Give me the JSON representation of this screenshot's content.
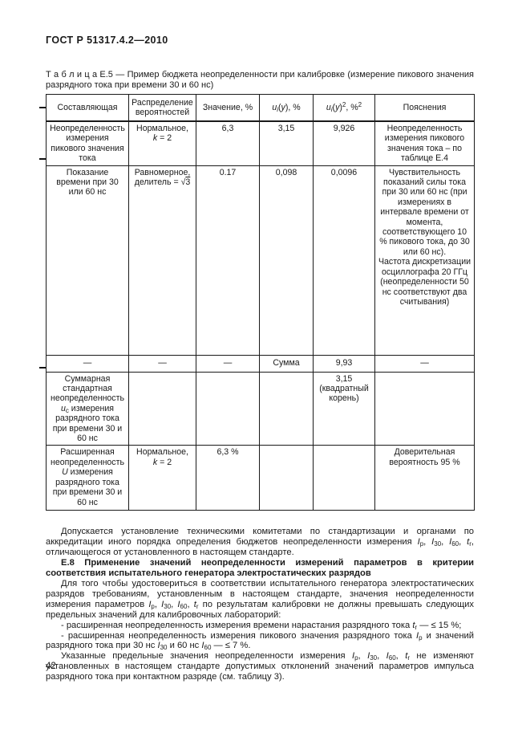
{
  "page": {
    "header": "ГОСТ Р 51317.4.2—2010",
    "page_number": "42"
  },
  "table": {
    "caption": "Т а б л и ц а   Е.5 — Пример бюджета неопределенности при калибровке (измерение пикового значения разрядного тока при времени 30 и 60 нс)",
    "head": {
      "c0": "Составляющая",
      "c1": "Распределение вероятностей",
      "c2": "Значение, %",
      "c3": "<i>u<sub>i</sub></i>(<i>y</i>), %",
      "c4": "<i>u<sub>i</sub></i>(<i>y</i>)<sup>2</sup>, %<sup>2</sup>",
      "c5": "Пояснения"
    },
    "rows": [
      {
        "c0": "Неопределенность измерения пикового значения тока",
        "c1": "Нормальное,<br><i>k</i> = 2",
        "c2": "6,3",
        "c3": "3,15",
        "c4": "9,926",
        "c5": "Неопределенность измерения пикового значения тока – по таблице Е.4"
      },
      {
        "c0": "Показание времени при 30 или 60 нс",
        "c1": "Равномерное,<br>делитель = √<span class='ol'>3</span>",
        "c2": "0.17",
        "c3": "0,098",
        "c4": "0,0096",
        "c5": "Чувствительность показаний силы тока при 30 или 60 нс (при измерениях в интервале времени от момента, соответствующего 10 % пикового тока, до 30 или 60 нс).<br>Частота дискретизации осциллографа 20 ГГц (неопределенности 50 нс соответствуют два считывания)"
      },
      {
        "c0": "—",
        "c1": "—",
        "c2": "—",
        "c3": "Сумма",
        "c4": "9,93",
        "c5": "—"
      },
      {
        "c0": "Суммарная стандартная неопределенность <i>u</i><sub>c</sub> измерения разрядного тока при времени 30  и 60 нс",
        "c1": "",
        "c2": "",
        "c3": "",
        "c4": "3,15 (квадратный корень)",
        "c5": ""
      },
      {
        "c0": "Расширенная неопределенность <i>U</i> измерения разрядного тока при времени 30  и 60 нс",
        "c1": "Нормальное,<br><i>k</i> = 2",
        "c2": "6,3 %",
        "c3": "",
        "c4": "",
        "c5": "Доверительная вероятность 95 %"
      }
    ]
  },
  "sections": {
    "p1": "Допускается установление техническими комитетами по стандартизации и органами по аккредитации иного порядка определения  бюджетов неопределенности измерения  <i>I</i><sub>p</sub>,  <i>I</i><sub>30</sub>,  <i>I</i><sub>60</sub>,  <i>t</i><sub>r</sub>, отличающегося от установленного в настоящем стандарте.",
    "heading_e8": "Е.8  Применение значений неопределенности  измерений параметров в критерии соответствия испытательного генератора электростатических разрядов",
    "p2": "Для того чтобы удостовериться в соответствии испытательного  генератора электростатических разрядов требованиям, установленным в настоящем стандарте, значения неопределенности  измерения параметров  <i>I</i><sub>p</sub>,  <i>I</i><sub>30</sub>,  <i>I</i><sub>60</sub>,  <i>t</i><sub>r</sub> по результатам калибровки  не должны превышать следующих предельных значений  для  калибровочных  лабораторий:",
    "bullet1": "-  расширенная  неопределенность измерения времени  нарастания разрядного тока <i>t</i><sub>r</sub>  —  ≤ 15 %;",
    "bullet2": "-  расширенная  неопределенность измерения  пикового значения разрядного тока  <i>I</i><sub>p</sub>   и значений разрядного тока при 30 нс  <i>I</i><sub>30</sub>  и  60 нс  <i>I</i><sub>60</sub> —  ≤ 7 %.",
    "p3": "Указанные предельные  значения  неопределенности измерения  <i>I</i><sub>p</sub>,  <i>I</i><sub>30</sub>,  <i>I</i><sub>60</sub>,  <i>t</i><sub>r</sub>  не  изменяют установленных в настоящем стандарте  допустимых отклонений значений  параметров  импульса разрядного тока при контактном разряде (см. таблицу 3)."
  }
}
